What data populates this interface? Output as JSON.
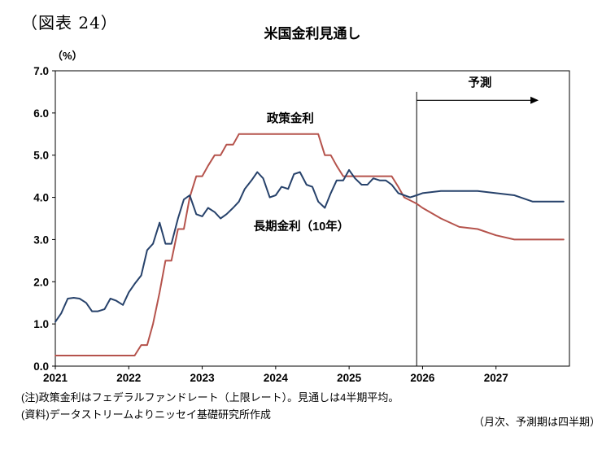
{
  "figure_label": "（図表 24）",
  "chart": {
    "title": "米国金利見通し",
    "unit_label": "（%）"
  },
  "notes": {
    "note1": "(注)政策金利はフェデラルファンドレート（上限レート）。見通しは4半期平均。",
    "note2": "(資料)データストリームよりニッセイ基礎研究所作成",
    "right": "（月次、予測期は四半期）"
  },
  "chart_data": {
    "type": "line",
    "title": "米国金利見通し",
    "ylabel": "（%）",
    "ylim": [
      0.0,
      7.0
    ],
    "ytick_step": 1.0,
    "xlim": [
      2021,
      2028
    ],
    "xticks": [
      2021,
      2022,
      2023,
      2024,
      2025,
      2026,
      2027
    ],
    "grid": false,
    "legend_position": "inline-annotations",
    "forecast": {
      "label": "予測",
      "line_x": 2025.92,
      "line_y_top": 6.5,
      "arrow_y": 6.3,
      "arrow_x_end": 2027.58,
      "label_x": 2026.78,
      "label_y": 6.62
    },
    "annotations": [
      {
        "text": "政策金利",
        "x": 2024.2,
        "y": 5.78
      },
      {
        "text": "長期金利（10年）",
        "x": 2024.35,
        "y": 3.22
      }
    ],
    "series": [
      {
        "name": "政策金利",
        "color": "#b5534c",
        "points": [
          [
            2021.0,
            0.25
          ],
          [
            2022.08,
            0.25
          ],
          [
            2022.17,
            0.5
          ],
          [
            2022.25,
            0.5
          ],
          [
            2022.33,
            1.0
          ],
          [
            2022.42,
            1.75
          ],
          [
            2022.5,
            2.5
          ],
          [
            2022.58,
            2.5
          ],
          [
            2022.67,
            3.25
          ],
          [
            2022.75,
            3.25
          ],
          [
            2022.83,
            4.0
          ],
          [
            2022.92,
            4.5
          ],
          [
            2023.0,
            4.5
          ],
          [
            2023.08,
            4.75
          ],
          [
            2023.17,
            5.0
          ],
          [
            2023.25,
            5.0
          ],
          [
            2023.33,
            5.25
          ],
          [
            2023.42,
            5.25
          ],
          [
            2023.5,
            5.5
          ],
          [
            2024.58,
            5.5
          ],
          [
            2024.67,
            5.0
          ],
          [
            2024.75,
            5.0
          ],
          [
            2024.83,
            4.75
          ],
          [
            2024.92,
            4.5
          ],
          [
            2025.58,
            4.5
          ],
          [
            2025.67,
            4.25
          ],
          [
            2025.75,
            4.0
          ],
          [
            2025.92,
            3.85
          ],
          [
            2026.0,
            3.75
          ],
          [
            2026.25,
            3.5
          ],
          [
            2026.5,
            3.3
          ],
          [
            2026.75,
            3.25
          ],
          [
            2027.0,
            3.1
          ],
          [
            2027.25,
            3.0
          ],
          [
            2027.92,
            3.0
          ]
        ]
      },
      {
        "name": "長期金利（10年）",
        "color": "#27426b",
        "points": [
          [
            2021.0,
            1.05
          ],
          [
            2021.08,
            1.25
          ],
          [
            2021.17,
            1.6
          ],
          [
            2021.25,
            1.62
          ],
          [
            2021.33,
            1.6
          ],
          [
            2021.42,
            1.5
          ],
          [
            2021.5,
            1.3
          ],
          [
            2021.58,
            1.3
          ],
          [
            2021.67,
            1.35
          ],
          [
            2021.75,
            1.6
          ],
          [
            2021.83,
            1.55
          ],
          [
            2021.92,
            1.45
          ],
          [
            2022.0,
            1.75
          ],
          [
            2022.08,
            1.95
          ],
          [
            2022.17,
            2.15
          ],
          [
            2022.25,
            2.75
          ],
          [
            2022.33,
            2.9
          ],
          [
            2022.42,
            3.4
          ],
          [
            2022.5,
            2.9
          ],
          [
            2022.58,
            2.9
          ],
          [
            2022.67,
            3.5
          ],
          [
            2022.75,
            3.95
          ],
          [
            2022.83,
            4.05
          ],
          [
            2022.92,
            3.6
          ],
          [
            2023.0,
            3.55
          ],
          [
            2023.08,
            3.75
          ],
          [
            2023.17,
            3.65
          ],
          [
            2023.25,
            3.5
          ],
          [
            2023.33,
            3.6
          ],
          [
            2023.42,
            3.75
          ],
          [
            2023.5,
            3.9
          ],
          [
            2023.58,
            4.2
          ],
          [
            2023.67,
            4.4
          ],
          [
            2023.75,
            4.6
          ],
          [
            2023.83,
            4.45
          ],
          [
            2023.92,
            4.0
          ],
          [
            2024.0,
            4.05
          ],
          [
            2024.08,
            4.25
          ],
          [
            2024.17,
            4.2
          ],
          [
            2024.25,
            4.55
          ],
          [
            2024.33,
            4.6
          ],
          [
            2024.42,
            4.3
          ],
          [
            2024.5,
            4.25
          ],
          [
            2024.58,
            3.9
          ],
          [
            2024.67,
            3.75
          ],
          [
            2024.75,
            4.1
          ],
          [
            2024.83,
            4.4
          ],
          [
            2024.92,
            4.4
          ],
          [
            2025.0,
            4.65
          ],
          [
            2025.08,
            4.45
          ],
          [
            2025.17,
            4.3
          ],
          [
            2025.25,
            4.3
          ],
          [
            2025.33,
            4.45
          ],
          [
            2025.42,
            4.4
          ],
          [
            2025.5,
            4.4
          ],
          [
            2025.58,
            4.3
          ],
          [
            2025.67,
            4.1
          ],
          [
            2025.75,
            4.05
          ],
          [
            2025.83,
            4.0
          ],
          [
            2025.92,
            4.05
          ],
          [
            2026.0,
            4.1
          ],
          [
            2026.25,
            4.15
          ],
          [
            2026.5,
            4.15
          ],
          [
            2026.75,
            4.15
          ],
          [
            2027.0,
            4.1
          ],
          [
            2027.25,
            4.05
          ],
          [
            2027.5,
            3.9
          ],
          [
            2027.92,
            3.9
          ]
        ]
      }
    ]
  }
}
